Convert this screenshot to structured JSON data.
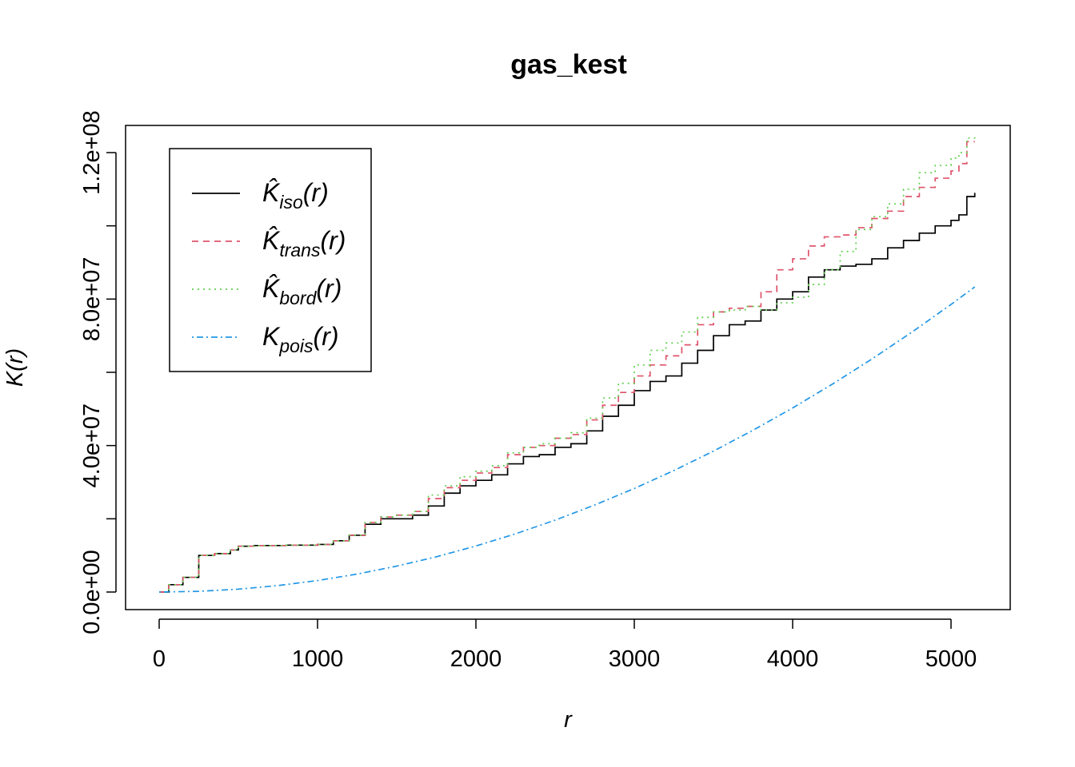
{
  "chart_data": {
    "type": "line",
    "title": "gas_kest",
    "xlabel": "r",
    "ylabel": "K(r)",
    "xlim": [
      0,
      5200
    ],
    "ylim": [
      0,
      123000000
    ],
    "x_ticks": [
      0,
      1000,
      2000,
      3000,
      4000,
      5000
    ],
    "x_tick_labels": [
      "0",
      "1000",
      "2000",
      "3000",
      "4000",
      "5000"
    ],
    "y_ticks": [
      0,
      20000000,
      40000000,
      60000000,
      80000000,
      100000000,
      120000000
    ],
    "y_tick_labels": [
      "0.0e+00",
      "",
      "4.0e+07",
      "",
      "8.0e+07",
      "",
      "1.2e+08"
    ],
    "grid": false,
    "legend_position": "top-left",
    "series": [
      {
        "name": "K̂iso(r)",
        "legend_base": "K̂",
        "legend_sub": "iso",
        "legend_suffix": "(r)",
        "color": "#000000",
        "dash": "none",
        "x": [
          0,
          60,
          150,
          250,
          350,
          450,
          500,
          600,
          800,
          1000,
          1100,
          1200,
          1300,
          1400,
          1500,
          1600,
          1700,
          1800,
          1900,
          2000,
          2100,
          2200,
          2300,
          2400,
          2500,
          2600,
          2700,
          2800,
          2900,
          3000,
          3100,
          3200,
          3300,
          3400,
          3500,
          3600,
          3700,
          3800,
          3900,
          4000,
          4100,
          4200,
          4300,
          4400,
          4500,
          4600,
          4700,
          4800,
          4900,
          5000,
          5050,
          5100,
          5150
        ],
        "y": [
          0,
          2000000,
          4000000,
          10000000,
          10500000,
          11500000,
          12500000,
          12700000,
          12800000,
          13000000,
          14000000,
          15500000,
          18500000,
          20000000,
          20000000,
          21000000,
          23500000,
          27000000,
          29000000,
          30500000,
          32000000,
          35000000,
          37000000,
          37500000,
          39500000,
          40500000,
          44000000,
          48000000,
          51000000,
          55000000,
          57500000,
          59000000,
          62500000,
          66000000,
          70000000,
          73000000,
          74000000,
          77000000,
          80000000,
          82000000,
          86000000,
          88000000,
          89000000,
          89500000,
          91000000,
          94000000,
          96000000,
          98000000,
          100000000,
          101500000,
          103000000,
          108000000,
          109000000
        ]
      },
      {
        "name": "K̂trans(r)",
        "legend_base": "K̂",
        "legend_sub": "trans",
        "legend_suffix": "(r)",
        "color": "#DF536B",
        "dash": "8,6",
        "x": [
          0,
          60,
          150,
          250,
          350,
          450,
          500,
          600,
          800,
          1000,
          1100,
          1200,
          1300,
          1400,
          1500,
          1600,
          1700,
          1800,
          1900,
          2000,
          2100,
          2200,
          2300,
          2400,
          2500,
          2600,
          2700,
          2800,
          2900,
          3000,
          3100,
          3200,
          3300,
          3400,
          3500,
          3600,
          3700,
          3800,
          3900,
          4000,
          4100,
          4200,
          4300,
          4400,
          4500,
          4600,
          4700,
          4800,
          4900,
          5000,
          5050,
          5100,
          5150
        ],
        "y": [
          0,
          2000000,
          4000000,
          10000000,
          10500000,
          11500000,
          12500000,
          12700000,
          12800000,
          13000000,
          14000000,
          15500000,
          19000000,
          20500000,
          21000000,
          22000000,
          25500000,
          28500000,
          30500000,
          32500000,
          34000000,
          37500000,
          39500000,
          40000000,
          42000000,
          43000000,
          47000000,
          51000000,
          54500000,
          59000000,
          62000000,
          64500000,
          67500000,
          73000000,
          76500000,
          77500000,
          78000000,
          82000000,
          88000000,
          91000000,
          94500000,
          97000000,
          97500000,
          99500000,
          102000000,
          104000000,
          108000000,
          110500000,
          113000000,
          115000000,
          117000000,
          123000000,
          123000000
        ]
      },
      {
        "name": "K̂bord(r)",
        "legend_base": "K̂",
        "legend_sub": "bord",
        "legend_suffix": "(r)",
        "color": "#61D04F",
        "dash": "2,5",
        "x": [
          0,
          60,
          150,
          250,
          350,
          450,
          500,
          600,
          800,
          1000,
          1100,
          1200,
          1300,
          1400,
          1500,
          1600,
          1700,
          1800,
          1900,
          2000,
          2100,
          2200,
          2300,
          2400,
          2500,
          2600,
          2700,
          2800,
          2900,
          3000,
          3100,
          3200,
          3300,
          3400,
          3500,
          3600,
          3700,
          3800,
          3900,
          4000,
          4100,
          4200,
          4300,
          4400,
          4500,
          4600,
          4700,
          4800,
          4900,
          5000,
          5050,
          5100,
          5150
        ],
        "y": [
          0,
          2000000,
          4000000,
          10000000,
          10500000,
          11500000,
          12500000,
          12700000,
          12800000,
          13000000,
          14000000,
          15500000,
          19000000,
          20500000,
          21000000,
          22000000,
          26500000,
          29000000,
          31500000,
          33000000,
          34500000,
          38000000,
          39500000,
          40500000,
          42000000,
          43500000,
          47500000,
          53000000,
          57000000,
          62000000,
          66000000,
          68000000,
          71000000,
          75000000,
          76500000,
          77000000,
          78000000,
          77000000,
          79000000,
          80500000,
          84000000,
          88000000,
          93000000,
          99000000,
          102500000,
          106000000,
          110000000,
          114500000,
          116500000,
          118500000,
          120000000,
          124000000,
          123000000
        ]
      },
      {
        "name": "Kpois(r)",
        "legend_base": "K",
        "legend_sub": "pois",
        "legend_suffix": "(r)",
        "color": "#2297E6",
        "dash": "2,4,8,4",
        "x": [
          0,
          250,
          500,
          750,
          1000,
          1250,
          1500,
          1750,
          2000,
          2250,
          2500,
          2750,
          3000,
          3250,
          3500,
          3750,
          4000,
          4250,
          4500,
          4750,
          5000,
          5150
        ],
        "y": [
          0,
          196000,
          785000,
          1770000,
          3140000,
          4910000,
          7070000,
          9620000,
          12570000,
          15900000,
          19630000,
          23760000,
          28270000,
          33180000,
          38480000,
          44180000,
          50270000,
          56750000,
          63620000,
          70880000,
          78540000,
          83320000
        ]
      }
    ]
  }
}
